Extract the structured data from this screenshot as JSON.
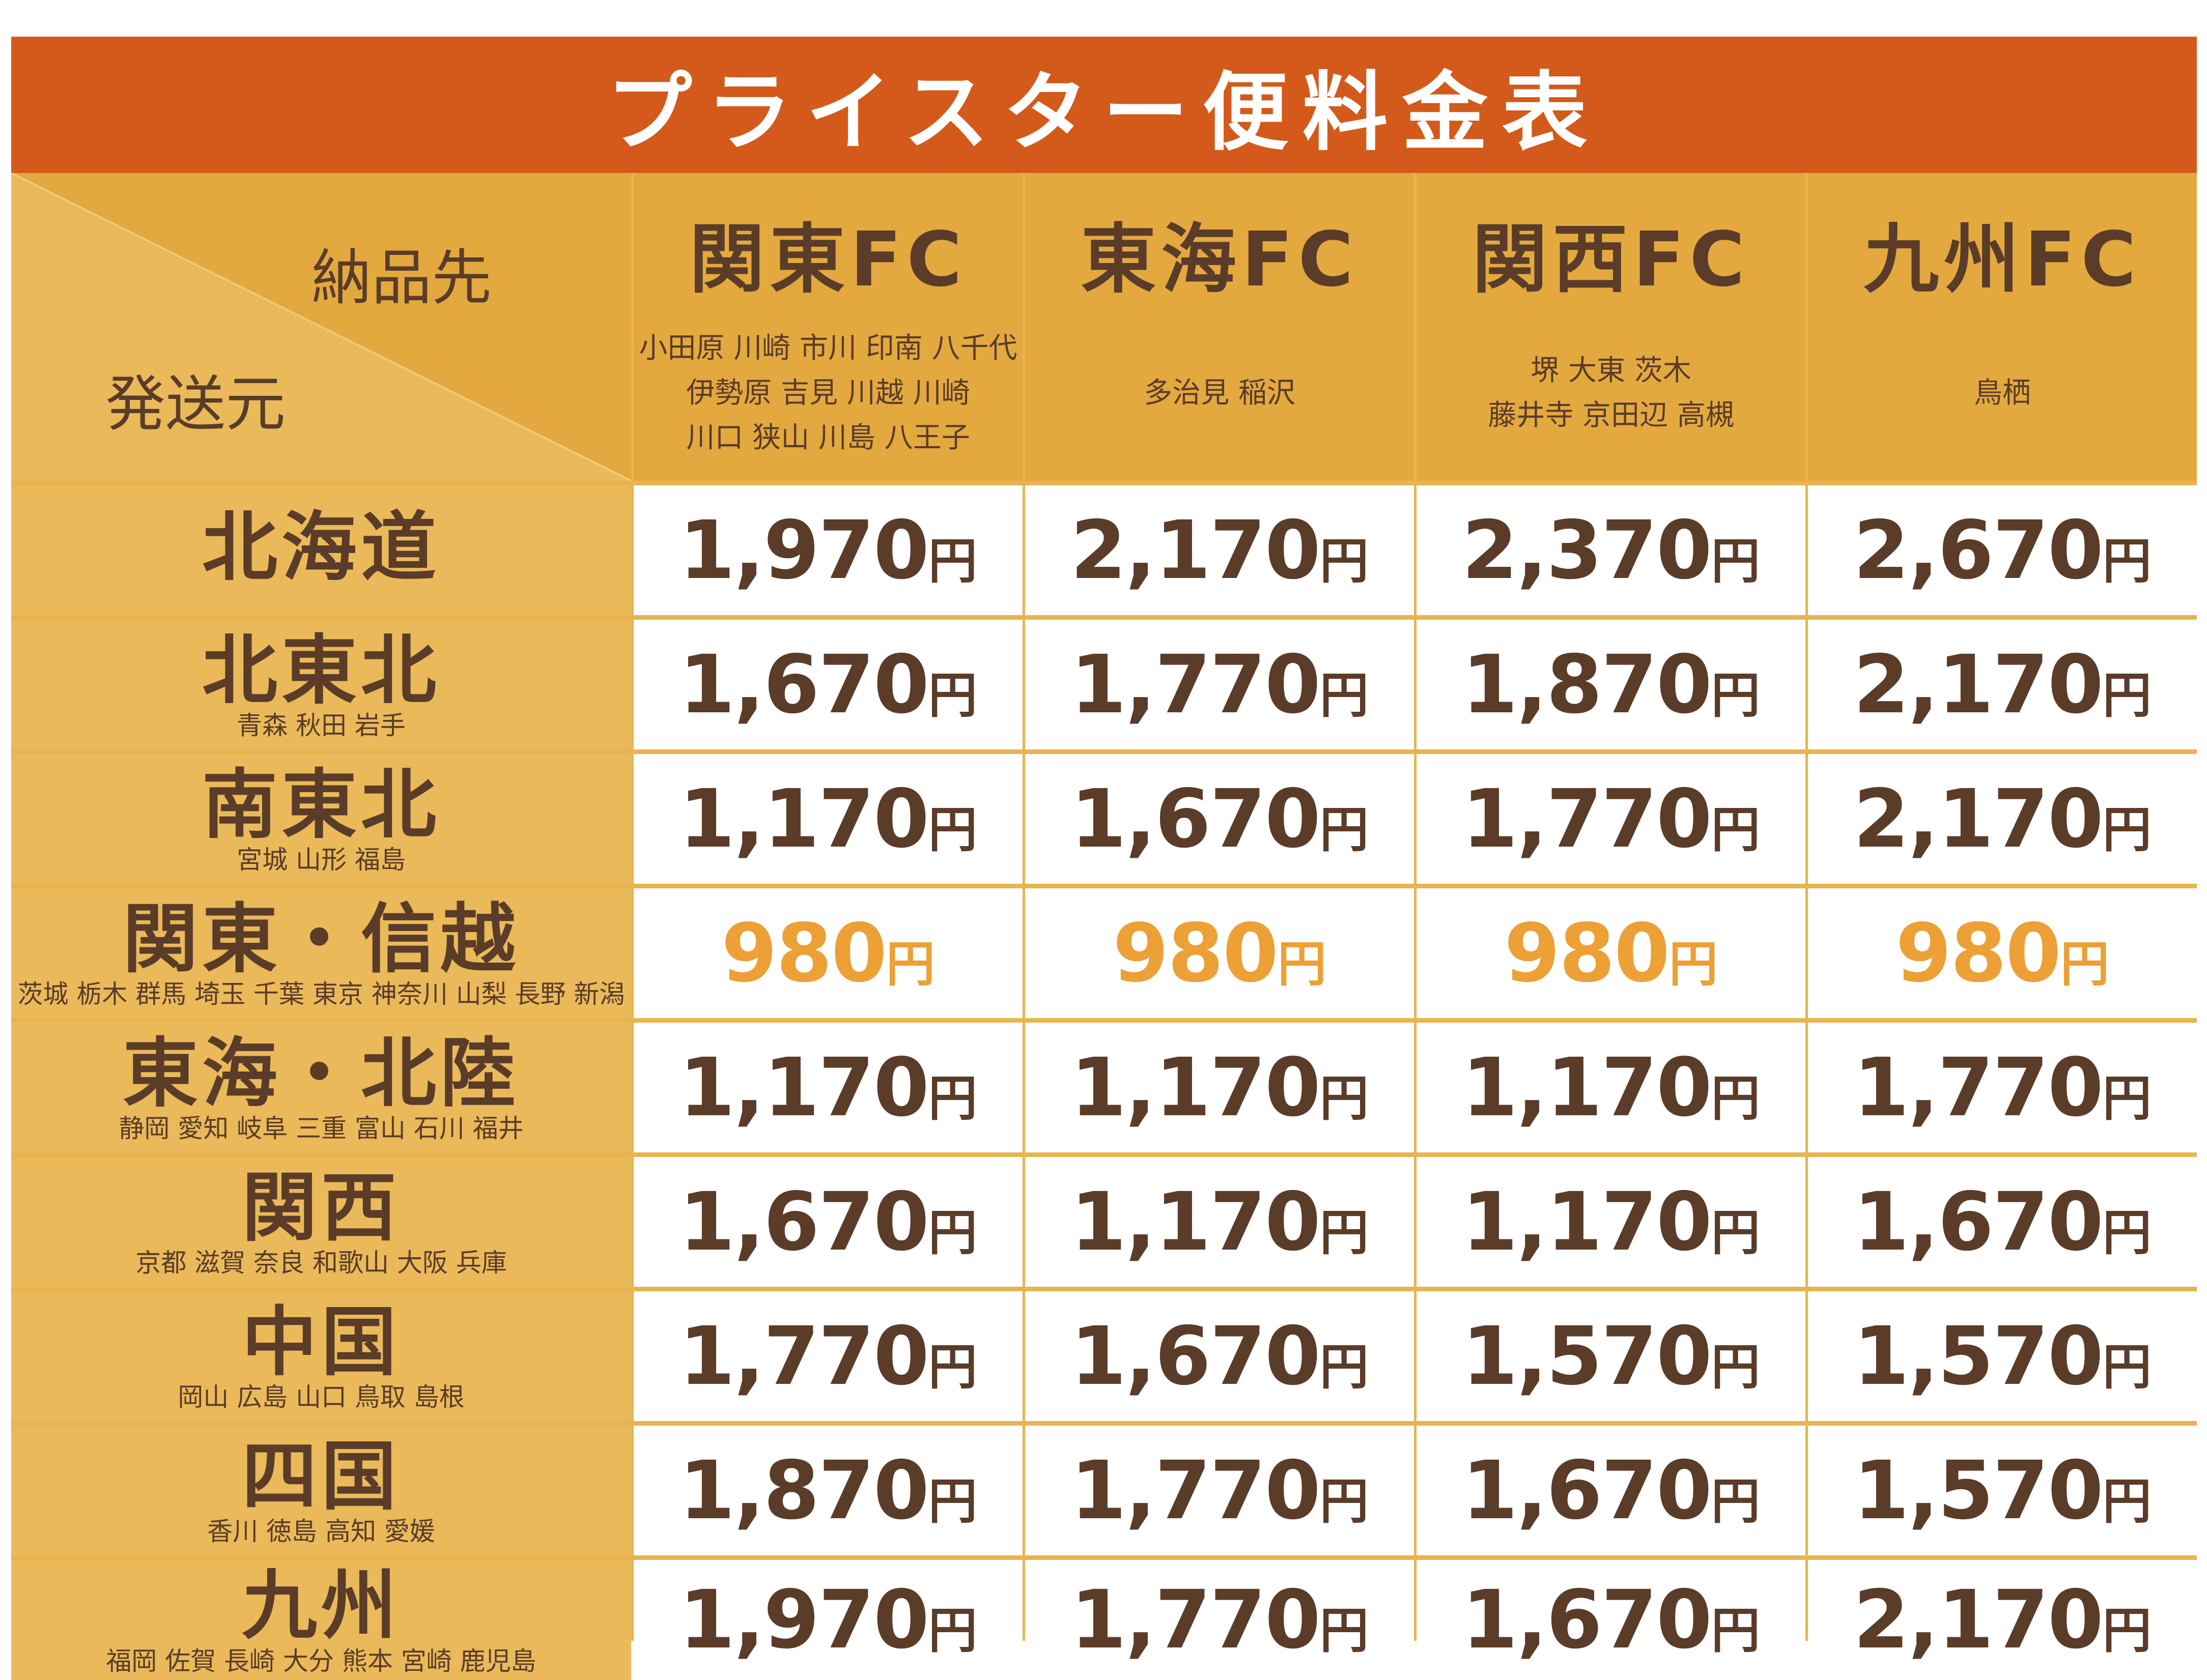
{
  "title": "プライスター便料金表",
  "corner": {
    "destination_label": "納品先",
    "origin_label": "発送元"
  },
  "columns": [
    {
      "name": "関東FC",
      "cities": [
        "小田原 川崎 市川 印南 八千代",
        "伊勢原 吉見 川越 川崎",
        "川口 狭山 川島 八王子"
      ]
    },
    {
      "name": "東海FC",
      "cities": [
        "多治見 稲沢"
      ]
    },
    {
      "name": "関西FC",
      "cities": [
        "堺 大東 茨木",
        "藤井寺 京田辺 高槻"
      ]
    },
    {
      "name": "九州FC",
      "cities": [
        "鳥栖"
      ]
    }
  ],
  "currency_unit": "円",
  "rows": [
    {
      "name": "北海道",
      "sub": "",
      "prices": [
        "1,970",
        "2,170",
        "2,370",
        "2,670"
      ],
      "highlight": false
    },
    {
      "name": "北東北",
      "sub": "青森 秋田 岩手",
      "prices": [
        "1,670",
        "1,770",
        "1,870",
        "2,170"
      ],
      "highlight": false
    },
    {
      "name": "南東北",
      "sub": "宮城 山形 福島",
      "prices": [
        "1,170",
        "1,670",
        "1,770",
        "2,170"
      ],
      "highlight": false
    },
    {
      "name": "関東・信越",
      "sub": "茨城 栃木 群馬 埼玉 千葉 東京 神奈川 山梨 長野 新潟",
      "prices": [
        "980",
        "980",
        "980",
        "980"
      ],
      "highlight": true
    },
    {
      "name": "東海・北陸",
      "sub": "静岡 愛知 岐阜 三重 富山 石川 福井",
      "prices": [
        "1,170",
        "1,170",
        "1,170",
        "1,770"
      ],
      "highlight": false
    },
    {
      "name": "関西",
      "sub": "京都 滋賀 奈良 和歌山 大阪 兵庫",
      "prices": [
        "1,670",
        "1,170",
        "1,170",
        "1,670"
      ],
      "highlight": false
    },
    {
      "name": "中国",
      "sub": "岡山 広島 山口 鳥取 島根",
      "prices": [
        "1,770",
        "1,670",
        "1,570",
        "1,570"
      ],
      "highlight": false
    },
    {
      "name": "四国",
      "sub": "香川 徳島 高知 愛媛",
      "prices": [
        "1,870",
        "1,770",
        "1,670",
        "1,570"
      ],
      "highlight": false
    },
    {
      "name": "九州",
      "sub": "福岡 佐賀 長崎 大分 熊本 宮崎 鹿児島",
      "prices": [
        "1,970",
        "1,770",
        "1,670",
        "2,170"
      ],
      "highlight": false
    }
  ],
  "colors": {
    "title_bg": "#d35a1b",
    "header_bg": "#e3a93f",
    "row_header_bg": "#eab95a",
    "text": "#5a3c28",
    "highlight_price": "#eca035"
  }
}
